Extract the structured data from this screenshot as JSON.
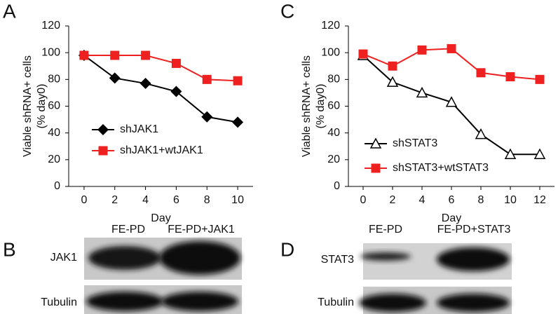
{
  "chart_data": [
    {
      "type": "line",
      "y_label": [
        "Viable shRNA+ cells",
        "(% day0)"
      ],
      "x_label": "Day",
      "x": [
        0,
        2,
        4,
        6,
        8,
        10
      ],
      "xlim": [
        -1,
        11
      ],
      "xticks": [
        0,
        2,
        4,
        6,
        8,
        10
      ],
      "ylim": [
        0,
        120
      ],
      "yticks": [
        0,
        20,
        40,
        60,
        80,
        100,
        120
      ],
      "series": [
        {
          "name": "shJAK1",
          "color": "#000000",
          "marker": "diamond",
          "values": [
            98,
            81,
            77,
            71,
            52,
            48
          ]
        },
        {
          "name": "shJAK1+wtJAK1",
          "color": "#ee2020",
          "marker": "square",
          "values": [
            98,
            98,
            98,
            92,
            80,
            79
          ]
        }
      ]
    },
    {
      "type": "line",
      "y_label": [
        "Viable shRNA+ cells",
        "(% day0)"
      ],
      "x_label": "Day",
      "x": [
        0,
        2,
        4,
        6,
        8,
        10,
        12
      ],
      "xlim": [
        -1,
        13
      ],
      "xticks": [
        0,
        2,
        4,
        6,
        8,
        10,
        12
      ],
      "ylim": [
        0,
        120
      ],
      "yticks": [
        0,
        20,
        40,
        60,
        80,
        100,
        120
      ],
      "series": [
        {
          "name": "shSTAT3",
          "color": "#000000",
          "marker": "triangle-open",
          "values": [
            98,
            78,
            70,
            63,
            39,
            24,
            24
          ]
        },
        {
          "name": "shSTAT3+wtSTAT3",
          "color": "#ee2020",
          "marker": "square",
          "values": [
            99,
            90,
            102,
            103,
            85,
            82,
            80
          ]
        }
      ]
    }
  ],
  "panel_labels": [
    "A",
    "B",
    "C",
    "D"
  ],
  "blots": [
    {
      "lanes": [
        "FE-PD",
        "FE-PD+JAK1"
      ],
      "rows": [
        "JAK1",
        "Tubulin"
      ]
    },
    {
      "lanes": [
        "FE-PD",
        "FE-PD+STAT3"
      ],
      "rows": [
        "STAT3",
        "Tubulin"
      ]
    }
  ]
}
